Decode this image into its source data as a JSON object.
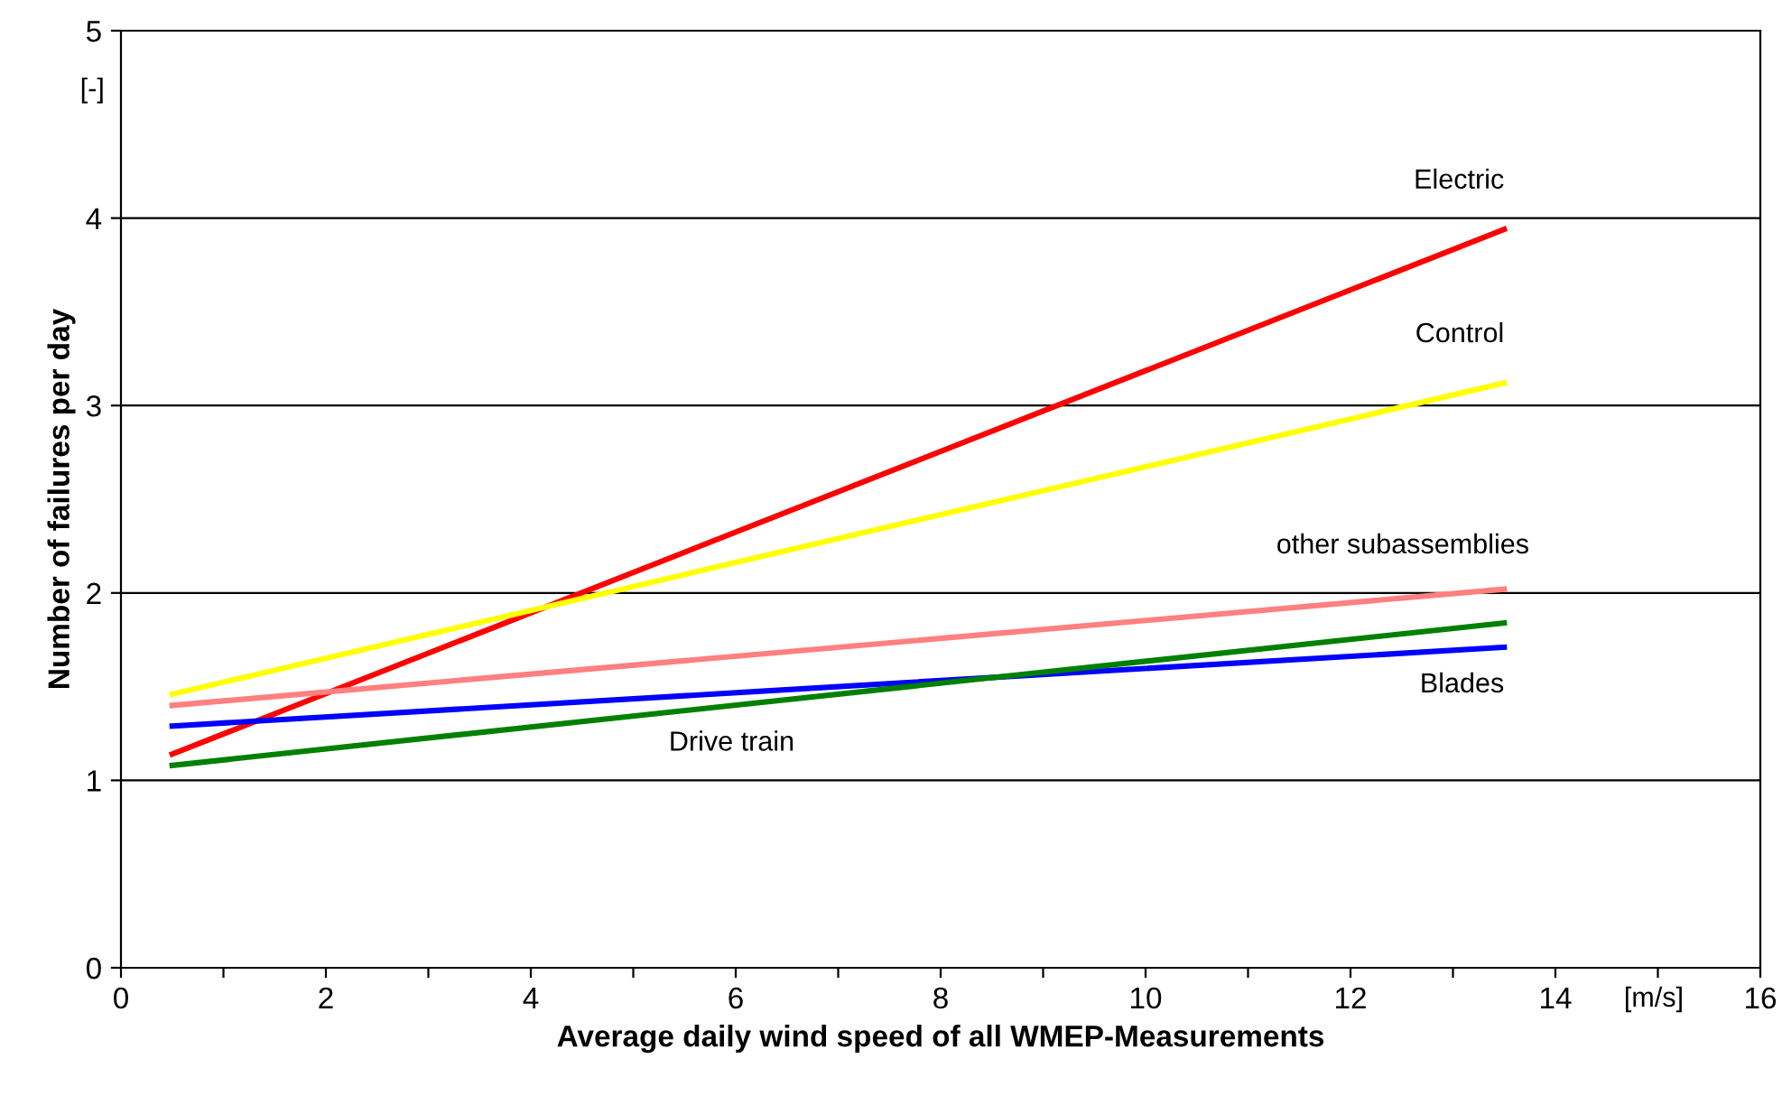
{
  "chart_data": {
    "type": "line",
    "xlabel": "Average daily wind speed of all WMEP-Measurements",
    "ylabel": "Number of failures per day",
    "annotations": [
      "[-]",
      "[m/s]"
    ],
    "x": [
      0.5,
      13.5
    ],
    "series": [
      {
        "name": "Electric",
        "color": "#ff0000",
        "values": [
          1.14,
          3.94
        ]
      },
      {
        "name": "Control",
        "color": "#ffff00",
        "values": [
          1.46,
          3.12
        ]
      },
      {
        "name": "other subassemblies",
        "color": "#ff8080",
        "values": [
          1.4,
          2.02
        ]
      },
      {
        "name": "Blades",
        "color": "#0000ff",
        "values": [
          1.29,
          1.71
        ]
      },
      {
        "name": "Drive train",
        "color": "#008000",
        "values": [
          1.08,
          1.84
        ]
      }
    ],
    "xlim": [
      0,
      16
    ],
    "xticks": [
      0,
      {
        "value": 1,
        "label": null
      },
      2,
      {
        "value": 3,
        "label": null
      },
      4,
      {
        "value": 5,
        "label": null
      },
      6,
      {
        "value": 7,
        "label": null
      },
      8,
      {
        "value": 9,
        "label": null
      },
      10,
      {
        "value": 11,
        "label": null
      },
      12,
      {
        "value": 13,
        "label": null
      },
      14,
      {
        "value": 15,
        "label": null
      },
      16
    ],
    "ylim": [
      0,
      5
    ],
    "yticks": [
      0,
      1,
      2,
      3,
      4,
      5
    ],
    "grid": "y",
    "marker": "none",
    "line_style": "solid"
  }
}
